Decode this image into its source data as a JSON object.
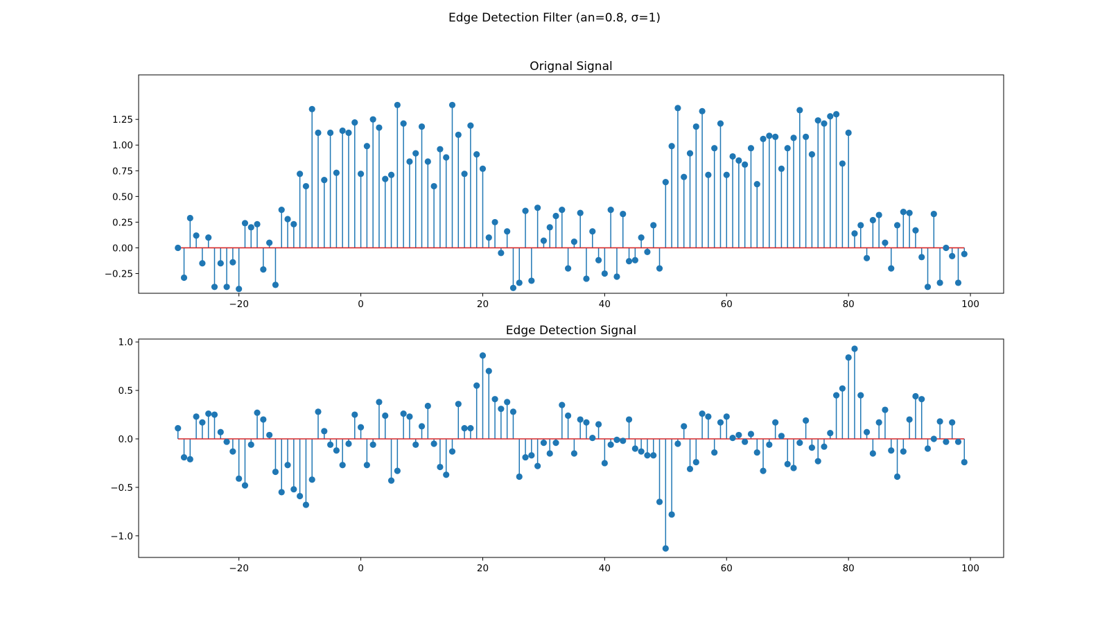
{
  "figure": {
    "suptitle": "Edge Detection Filter (an=0.8, σ=1)"
  },
  "colors": {
    "stem": "#1f77b4",
    "marker": "#1f77b4",
    "baseline": "#d62728",
    "axes": "#000000",
    "background": "#ffffff"
  },
  "chart_data": [
    {
      "type": "stem",
      "title": "Orignal Signal",
      "xlabel": "",
      "ylabel": "",
      "xlim": [
        -36.45,
        105.45
      ],
      "ylim": [
        -0.442,
        1.683
      ],
      "xticks": [
        -20,
        0,
        20,
        40,
        60,
        80,
        100
      ],
      "xticklabels": [
        "−20",
        "0",
        "20",
        "40",
        "60",
        "80",
        "100"
      ],
      "yticks": [
        -0.25,
        0,
        0.25,
        0.5,
        0.75,
        1.0,
        1.25
      ],
      "yticklabels": [
        "−0.25",
        "0.00",
        "0.25",
        "0.50",
        "0.75",
        "1.00",
        "1.25"
      ],
      "grid": false,
      "baseline": 0,
      "x_start": -30,
      "x_end": 99,
      "values": [
        0.0,
        -0.29,
        0.29,
        0.12,
        -0.15,
        0.1,
        -0.38,
        -0.15,
        -0.38,
        -0.14,
        -0.4,
        0.24,
        0.2,
        0.23,
        -0.21,
        0.05,
        -0.36,
        0.37,
        0.28,
        0.23,
        0.72,
        0.6,
        1.35,
        1.12,
        0.66,
        1.12,
        0.73,
        1.14,
        1.12,
        1.22,
        0.72,
        0.99,
        1.25,
        1.17,
        0.67,
        0.71,
        1.39,
        1.21,
        0.84,
        0.92,
        1.18,
        0.84,
        0.6,
        0.96,
        0.88,
        1.39,
        1.1,
        0.72,
        1.19,
        0.91,
        0.77,
        0.1,
        0.25,
        -0.05,
        0.16,
        -0.39,
        -0.34,
        0.36,
        -0.32,
        0.39,
        0.07,
        0.2,
        0.31,
        0.37,
        -0.2,
        0.06,
        0.34,
        -0.3,
        0.16,
        -0.12,
        -0.25,
        0.37,
        -0.28,
        0.33,
        -0.13,
        -0.12,
        0.1,
        -0.04,
        0.22,
        -0.2,
        0.64,
        0.99,
        1.36,
        0.69,
        0.92,
        1.18,
        1.33,
        0.71,
        0.97,
        1.21,
        0.71,
        0.89,
        0.85,
        0.81,
        0.97,
        0.62,
        1.06,
        1.09,
        1.08,
        0.77,
        0.97,
        1.07,
        1.34,
        1.08,
        0.91,
        1.24,
        1.21,
        1.28,
        1.3,
        0.82,
        1.12,
        0.14,
        0.22,
        -0.1,
        0.27,
        0.32,
        0.05,
        -0.2,
        0.22,
        0.35,
        0.34,
        0.17,
        -0.09,
        -0.38,
        0.33,
        -0.34,
        0.0,
        -0.08,
        -0.34,
        -0.06
      ]
    },
    {
      "type": "stem",
      "title": "Edge Detection Signal",
      "xlabel": "",
      "ylabel": "",
      "xlim": [
        -36.45,
        105.45
      ],
      "ylim": [
        -1.223,
        1.03
      ],
      "xticks": [
        -20,
        0,
        20,
        40,
        60,
        80,
        100
      ],
      "xticklabels": [
        "−20",
        "0",
        "20",
        "40",
        "60",
        "80",
        "100"
      ],
      "yticks": [
        -1.0,
        -0.5,
        0,
        0.5,
        1.0
      ],
      "yticklabels": [
        "−1.0",
        "−0.5",
        "0.0",
        "0.5",
        "1.0"
      ],
      "grid": false,
      "baseline": 0,
      "x_start": -30,
      "x_end": 99,
      "values": [
        0.11,
        -0.19,
        -0.21,
        0.23,
        0.17,
        0.26,
        0.25,
        0.07,
        -0.03,
        -0.13,
        -0.41,
        -0.48,
        -0.06,
        0.27,
        0.2,
        0.04,
        -0.34,
        -0.55,
        -0.27,
        -0.52,
        -0.59,
        -0.68,
        -0.42,
        0.28,
        0.08,
        -0.06,
        -0.12,
        -0.27,
        -0.05,
        0.25,
        0.12,
        -0.27,
        -0.06,
        0.38,
        0.24,
        -0.43,
        -0.33,
        0.26,
        0.23,
        -0.06,
        0.13,
        0.34,
        -0.05,
        -0.29,
        -0.37,
        -0.13,
        0.36,
        0.11,
        0.11,
        0.55,
        0.86,
        0.7,
        0.41,
        0.31,
        0.38,
        0.28,
        -0.39,
        -0.19,
        -0.17,
        -0.28,
        -0.04,
        -0.15,
        -0.04,
        0.35,
        0.24,
        -0.15,
        0.2,
        0.17,
        0.01,
        0.15,
        -0.25,
        -0.06,
        -0.01,
        -0.02,
        0.2,
        -0.1,
        -0.13,
        -0.17,
        -0.17,
        -0.65,
        -1.13,
        -0.78,
        -0.05,
        0.13,
        -0.31,
        -0.24,
        0.26,
        0.23,
        -0.14,
        0.17,
        0.23,
        0.01,
        0.04,
        -0.03,
        0.05,
        -0.14,
        -0.33,
        -0.06,
        0.17,
        0.03,
        -0.26,
        -0.3,
        -0.04,
        0.19,
        -0.09,
        -0.23,
        -0.08,
        0.06,
        0.45,
        0.52,
        0.84,
        0.93,
        0.45,
        0.07,
        -0.15,
        0.17,
        0.3,
        -0.12,
        -0.39,
        -0.13,
        0.2,
        0.44,
        0.41,
        -0.1,
        0.0,
        0.18,
        -0.03,
        0.17,
        -0.03,
        -0.24
      ]
    }
  ]
}
